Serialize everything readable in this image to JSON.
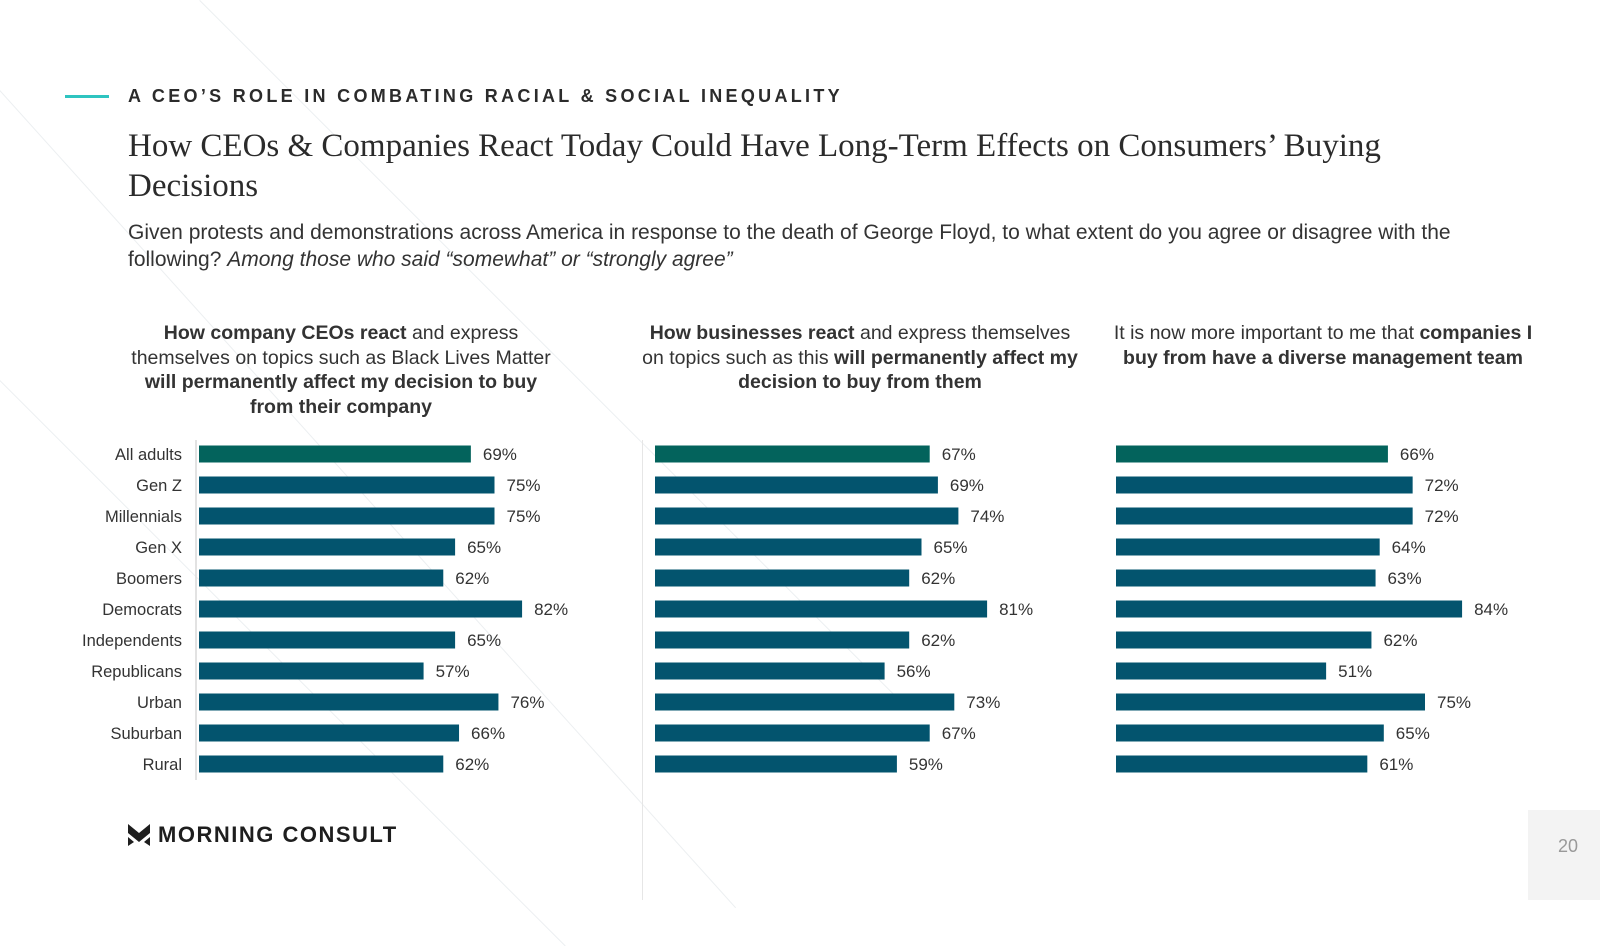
{
  "header": {
    "kicker": "A CEO’S ROLE IN COMBATING RACIAL & SOCIAL INEQUALITY",
    "title": "How CEOs & Companies React Today Could Have Long-Term Effects on Consumers’ Buying Decisions",
    "question": "Given protests and demonstrations across America in response to the death of George Floyd, to what extent do you agree or disagree with the following?",
    "question_note": "Among those who said “somewhat” or “strongly agree”"
  },
  "chart_data": [
    {
      "type": "bar",
      "orientation": "horizontal",
      "title_segments": [
        {
          "t": "How company CEOs react",
          "b": true
        },
        {
          "t": " and express themselves on topics such as Black Lives Matter ",
          "b": false
        },
        {
          "t": "will permanently affect my decision to buy from their company",
          "b": true
        }
      ],
      "categories": [
        "All adults",
        "Gen Z",
        "Millennials",
        "Gen X",
        "Boomers",
        "Democrats",
        "Independents",
        "Republicans",
        "Urban",
        "Suburban",
        "Rural"
      ],
      "values": [
        69,
        75,
        75,
        65,
        62,
        82,
        65,
        57,
        76,
        66,
        62
      ],
      "labels": [
        "69%",
        "75%",
        "75%",
        "65%",
        "62%",
        "82%",
        "65%",
        "57%",
        "76%",
        "66%",
        "62%"
      ]
    },
    {
      "type": "bar",
      "orientation": "horizontal",
      "title_segments": [
        {
          "t": "How businesses react",
          "b": true
        },
        {
          "t": " and express themselves on topics such as this ",
          "b": false
        },
        {
          "t": "will permanently affect my decision to buy from them",
          "b": true
        }
      ],
      "categories": [
        "All adults",
        "Gen Z",
        "Millennials",
        "Gen X",
        "Boomers",
        "Democrats",
        "Independents",
        "Republicans",
        "Urban",
        "Suburban",
        "Rural"
      ],
      "values": [
        67,
        69,
        74,
        65,
        62,
        81,
        62,
        56,
        73,
        67,
        59
      ],
      "labels": [
        "67%",
        "69%",
        "74%",
        "65%",
        "62%",
        "81%",
        "62%",
        "56%",
        "73%",
        "67%",
        "59%"
      ]
    },
    {
      "type": "bar",
      "orientation": "horizontal",
      "title_segments": [
        {
          "t": "It is now more important to me that ",
          "b": false
        },
        {
          "t": "companies I buy from have a diverse management team",
          "b": true
        }
      ],
      "categories": [
        "All adults",
        "Gen Z",
        "Millennials",
        "Gen X",
        "Boomers",
        "Democrats",
        "Independents",
        "Republicans",
        "Urban",
        "Suburban",
        "Rural"
      ],
      "values": [
        66,
        72,
        72,
        64,
        63,
        84,
        62,
        51,
        75,
        65,
        61
      ],
      "labels": [
        "66%",
        "72%",
        "72%",
        "64%",
        "63%",
        "84%",
        "62%",
        "51%",
        "75%",
        "65%",
        "61%"
      ]
    }
  ],
  "colors": {
    "highlight": "#03635c",
    "bar": "#03546e",
    "accent": "#2ec4c0"
  },
  "footer": {
    "logo": "MORNING CONSULT",
    "page": "20"
  }
}
